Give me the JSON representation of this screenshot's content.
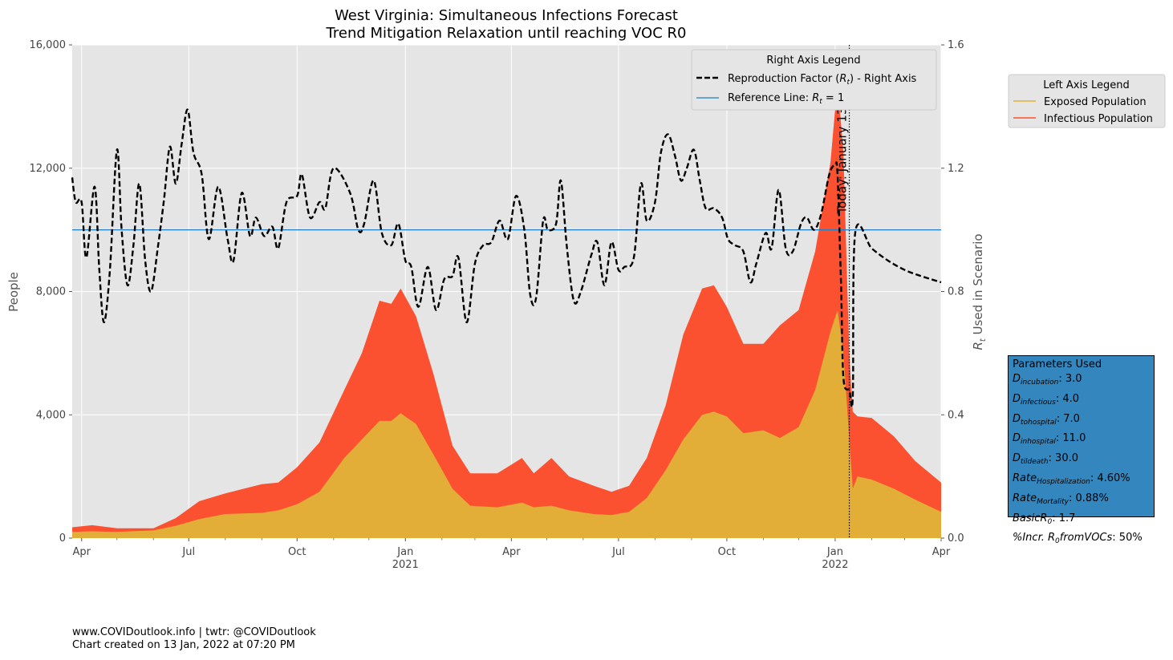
{
  "chart_data": {
    "type": "area",
    "title_line1": "West Virginia: Simultaneous Infections Forecast",
    "title_line2": "Trend Mitigation Relaxation until reaching VOC R0",
    "ylabel_left": "People",
    "ylabel_right": "R_t Used in Scenario",
    "ylim_left": [
      0,
      16000
    ],
    "ylim_right": [
      0,
      1.6
    ],
    "xlim": [
      "2020-03-24",
      "2022-04-01"
    ],
    "left_ticks": [
      "0",
      "4,000",
      "8,000",
      "12,000",
      "16,000"
    ],
    "right_ticks": [
      "0.0",
      "0.4",
      "0.8",
      "1.2",
      "1.6"
    ],
    "x_ticks": [
      {
        "date": "2020-04-01",
        "label": "Apr",
        "year": ""
      },
      {
        "date": "2020-07-01",
        "label": "Jul",
        "year": ""
      },
      {
        "date": "2020-10-01",
        "label": "Oct",
        "year": ""
      },
      {
        "date": "2021-01-01",
        "label": "Jan",
        "year": "2021"
      },
      {
        "date": "2021-04-01",
        "label": "Apr",
        "year": ""
      },
      {
        "date": "2021-07-01",
        "label": "Jul",
        "year": ""
      },
      {
        "date": "2021-10-01",
        "label": "Oct",
        "year": ""
      },
      {
        "date": "2022-01-01",
        "label": "Jan",
        "year": "2022"
      },
      {
        "date": "2022-04-01",
        "label": "Apr",
        "year": ""
      }
    ],
    "today": {
      "date": "2022-01-13",
      "label": "Today: January 13"
    },
    "reference_line": 1.0,
    "legend_right": {
      "title": "Right Axis Legend",
      "rt_label": "Reproduction Factor (R_t) - Right Axis",
      "ref_label": "Reference Line: R_t = 1"
    },
    "legend_left": {
      "title": "Left Axis Legend",
      "exposed_label": "Exposed Population",
      "infectious_label": "Infectious Population"
    },
    "colors": {
      "exposed": "#e3ae38",
      "infectious": "#fc5130",
      "rt": "#000000",
      "reference": "#1f7ec4",
      "plot_bg": "#e5e5e5",
      "params_bg": "#3387be"
    },
    "series": [
      {
        "name": "Exposed Population",
        "points": [
          [
            "2020-03-24",
            200
          ],
          [
            "2020-04-10",
            220
          ],
          [
            "2020-05-01",
            200
          ],
          [
            "2020-06-01",
            250
          ],
          [
            "2020-06-20",
            400
          ],
          [
            "2020-07-10",
            620
          ],
          [
            "2020-08-01",
            780
          ],
          [
            "2020-09-01",
            820
          ],
          [
            "2020-09-15",
            900
          ],
          [
            "2020-10-01",
            1100
          ],
          [
            "2020-10-20",
            1500
          ],
          [
            "2020-11-10",
            2600
          ],
          [
            "2020-11-25",
            3200
          ],
          [
            "2020-12-10",
            3800
          ],
          [
            "2020-12-20",
            3800
          ],
          [
            "2020-12-28",
            4050
          ],
          [
            "2021-01-10",
            3700
          ],
          [
            "2021-01-25",
            2700
          ],
          [
            "2021-02-10",
            1600
          ],
          [
            "2021-02-25",
            1050
          ],
          [
            "2021-03-20",
            1000
          ],
          [
            "2021-04-10",
            1150
          ],
          [
            "2021-04-20",
            1000
          ],
          [
            "2021-05-05",
            1050
          ],
          [
            "2021-05-20",
            900
          ],
          [
            "2021-06-10",
            780
          ],
          [
            "2021-06-25",
            750
          ],
          [
            "2021-07-10",
            850
          ],
          [
            "2021-07-25",
            1300
          ],
          [
            "2021-08-10",
            2200
          ],
          [
            "2021-08-25",
            3200
          ],
          [
            "2021-09-10",
            4000
          ],
          [
            "2021-09-20",
            4100
          ],
          [
            "2021-10-01",
            3950
          ],
          [
            "2021-10-15",
            3400
          ],
          [
            "2021-11-01",
            3500
          ],
          [
            "2021-11-15",
            3250
          ],
          [
            "2021-12-01",
            3600
          ],
          [
            "2021-12-15",
            4800
          ],
          [
            "2021-12-28",
            6700
          ],
          [
            "2022-01-03",
            7400
          ],
          [
            "2022-01-08",
            6000
          ],
          [
            "2022-01-13",
            3200
          ],
          [
            "2022-01-16",
            1600
          ],
          [
            "2022-01-20",
            2000
          ],
          [
            "2022-02-01",
            1900
          ],
          [
            "2022-02-20",
            1600
          ],
          [
            "2022-03-10",
            1250
          ],
          [
            "2022-04-01",
            850
          ]
        ]
      },
      {
        "name": "Infectious Population",
        "points": [
          [
            "2020-03-24",
            350
          ],
          [
            "2020-04-10",
            420
          ],
          [
            "2020-05-01",
            320
          ],
          [
            "2020-06-01",
            320
          ],
          [
            "2020-06-20",
            650
          ],
          [
            "2020-07-10",
            1200
          ],
          [
            "2020-08-01",
            1450
          ],
          [
            "2020-09-01",
            1750
          ],
          [
            "2020-09-15",
            1800
          ],
          [
            "2020-10-01",
            2300
          ],
          [
            "2020-10-20",
            3100
          ],
          [
            "2020-11-10",
            4800
          ],
          [
            "2020-11-25",
            6000
          ],
          [
            "2020-12-10",
            7700
          ],
          [
            "2020-12-20",
            7600
          ],
          [
            "2020-12-28",
            8100
          ],
          [
            "2021-01-10",
            7200
          ],
          [
            "2021-01-25",
            5300
          ],
          [
            "2021-02-10",
            3000
          ],
          [
            "2021-02-25",
            2100
          ],
          [
            "2021-03-20",
            2100
          ],
          [
            "2021-04-10",
            2600
          ],
          [
            "2021-04-20",
            2100
          ],
          [
            "2021-05-05",
            2600
          ],
          [
            "2021-05-20",
            2000
          ],
          [
            "2021-06-10",
            1700
          ],
          [
            "2021-06-25",
            1500
          ],
          [
            "2021-07-10",
            1700
          ],
          [
            "2021-07-25",
            2600
          ],
          [
            "2021-08-10",
            4300
          ],
          [
            "2021-08-25",
            6600
          ],
          [
            "2021-09-10",
            8100
          ],
          [
            "2021-09-20",
            8200
          ],
          [
            "2021-10-01",
            7500
          ],
          [
            "2021-10-15",
            6300
          ],
          [
            "2021-11-01",
            6300
          ],
          [
            "2021-11-15",
            6900
          ],
          [
            "2021-12-01",
            7400
          ],
          [
            "2021-12-15",
            9300
          ],
          [
            "2021-12-28",
            12200
          ],
          [
            "2022-01-03",
            14800
          ],
          [
            "2022-01-08",
            12500
          ],
          [
            "2022-01-13",
            6000
          ],
          [
            "2022-01-16",
            4100
          ],
          [
            "2022-01-20",
            3950
          ],
          [
            "2022-02-01",
            3900
          ],
          [
            "2022-02-20",
            3300
          ],
          [
            "2022-03-10",
            2500
          ],
          [
            "2022-04-01",
            1800
          ]
        ]
      },
      {
        "name": "Reproduction Factor (R_t) - Right Axis",
        "axis": "right",
        "points": [
          [
            "2020-03-24",
            1.17
          ],
          [
            "2020-03-27",
            1.09
          ],
          [
            "2020-04-01",
            1.09
          ],
          [
            "2020-04-05",
            0.91
          ],
          [
            "2020-04-12",
            1.14
          ],
          [
            "2020-04-16",
            0.87
          ],
          [
            "2020-04-20",
            0.7
          ],
          [
            "2020-04-25",
            0.87
          ],
          [
            "2020-05-01",
            1.26
          ],
          [
            "2020-05-05",
            1.0
          ],
          [
            "2020-05-10",
            0.82
          ],
          [
            "2020-05-15",
            0.95
          ],
          [
            "2020-05-20",
            1.15
          ],
          [
            "2020-05-25",
            0.9
          ],
          [
            "2020-05-30",
            0.8
          ],
          [
            "2020-06-05",
            0.95
          ],
          [
            "2020-06-10",
            1.1
          ],
          [
            "2020-06-15",
            1.27
          ],
          [
            "2020-06-20",
            1.15
          ],
          [
            "2020-06-25",
            1.28
          ],
          [
            "2020-06-30",
            1.39
          ],
          [
            "2020-07-05",
            1.25
          ],
          [
            "2020-07-12",
            1.18
          ],
          [
            "2020-07-18",
            0.97
          ],
          [
            "2020-07-26",
            1.14
          ],
          [
            "2020-08-03",
            0.97
          ],
          [
            "2020-08-08",
            0.9
          ],
          [
            "2020-08-15",
            1.12
          ],
          [
            "2020-08-22",
            0.98
          ],
          [
            "2020-08-27",
            1.04
          ],
          [
            "2020-09-03",
            0.98
          ],
          [
            "2020-09-10",
            1.01
          ],
          [
            "2020-09-15",
            0.94
          ],
          [
            "2020-09-22",
            1.09
          ],
          [
            "2020-10-01",
            1.11
          ],
          [
            "2020-10-05",
            1.18
          ],
          [
            "2020-10-12",
            1.04
          ],
          [
            "2020-10-20",
            1.09
          ],
          [
            "2020-10-25",
            1.07
          ],
          [
            "2020-11-01",
            1.2
          ],
          [
            "2020-11-15",
            1.12
          ],
          [
            "2020-11-22",
            1.0
          ],
          [
            "2020-11-27",
            1.02
          ],
          [
            "2020-12-05",
            1.16
          ],
          [
            "2020-12-12",
            0.99
          ],
          [
            "2020-12-20",
            0.95
          ],
          [
            "2020-12-26",
            1.02
          ],
          [
            "2021-01-01",
            0.9
          ],
          [
            "2021-01-06",
            0.88
          ],
          [
            "2021-01-12",
            0.75
          ],
          [
            "2021-01-20",
            0.88
          ],
          [
            "2021-01-27",
            0.74
          ],
          [
            "2021-02-03",
            0.84
          ],
          [
            "2021-02-10",
            0.85
          ],
          [
            "2021-02-15",
            0.91
          ],
          [
            "2021-02-22",
            0.7
          ],
          [
            "2021-03-01",
            0.89
          ],
          [
            "2021-03-08",
            0.95
          ],
          [
            "2021-03-15",
            0.96
          ],
          [
            "2021-03-22",
            1.03
          ],
          [
            "2021-03-29",
            0.97
          ],
          [
            "2021-04-05",
            1.11
          ],
          [
            "2021-04-12",
            1.0
          ],
          [
            "2021-04-17",
            0.79
          ],
          [
            "2021-04-22",
            0.78
          ],
          [
            "2021-04-28",
            1.03
          ],
          [
            "2021-05-02",
            1.0
          ],
          [
            "2021-05-09",
            1.02
          ],
          [
            "2021-05-13",
            1.16
          ],
          [
            "2021-05-18",
            0.95
          ],
          [
            "2021-05-24",
            0.77
          ],
          [
            "2021-05-30",
            0.8
          ],
          [
            "2021-06-08",
            0.92
          ],
          [
            "2021-06-13",
            0.96
          ],
          [
            "2021-06-19",
            0.82
          ],
          [
            "2021-06-25",
            0.96
          ],
          [
            "2021-07-01",
            0.87
          ],
          [
            "2021-07-06",
            0.88
          ],
          [
            "2021-07-14",
            0.91
          ],
          [
            "2021-07-20",
            1.15
          ],
          [
            "2021-07-25",
            1.03
          ],
          [
            "2021-08-01",
            1.09
          ],
          [
            "2021-08-06",
            1.25
          ],
          [
            "2021-08-12",
            1.31
          ],
          [
            "2021-08-18",
            1.24
          ],
          [
            "2021-08-23",
            1.16
          ],
          [
            "2021-08-28",
            1.2
          ],
          [
            "2021-09-03",
            1.26
          ],
          [
            "2021-09-08",
            1.16
          ],
          [
            "2021-09-13",
            1.07
          ],
          [
            "2021-09-20",
            1.07
          ],
          [
            "2021-09-27",
            1.04
          ],
          [
            "2021-10-02",
            0.97
          ],
          [
            "2021-10-08",
            0.95
          ],
          [
            "2021-10-15",
            0.93
          ],
          [
            "2021-10-21",
            0.83
          ],
          [
            "2021-10-26",
            0.89
          ],
          [
            "2021-11-03",
            0.99
          ],
          [
            "2021-11-08",
            0.94
          ],
          [
            "2021-11-14",
            1.13
          ],
          [
            "2021-11-20",
            0.94
          ],
          [
            "2021-11-26",
            0.93
          ],
          [
            "2021-12-03",
            1.02
          ],
          [
            "2021-12-08",
            1.04
          ],
          [
            "2021-12-14",
            1.0
          ],
          [
            "2021-12-20",
            1.05
          ],
          [
            "2021-12-27",
            1.18
          ],
          [
            "2022-01-01",
            1.21
          ],
          [
            "2022-01-03",
            1.18
          ],
          [
            "2022-01-06",
            0.82
          ],
          [
            "2022-01-08",
            0.52
          ],
          [
            "2022-01-13",
            0.48
          ],
          [
            "2022-01-16",
            0.46
          ],
          [
            "2022-01-18",
            0.99
          ],
          [
            "2022-02-01",
            0.94
          ],
          [
            "2022-02-15",
            0.9
          ],
          [
            "2022-03-01",
            0.87
          ],
          [
            "2022-03-15",
            0.85
          ],
          [
            "2022-04-01",
            0.83
          ]
        ]
      }
    ]
  },
  "params": {
    "title": "Parameters Used",
    "items": [
      {
        "base": "D",
        "sub": "incubation",
        "value": ": 3.0"
      },
      {
        "base": "D",
        "sub": "infectious",
        "value": ": 4.0"
      },
      {
        "base": "D",
        "sub": "tohospital",
        "value": ": 7.0"
      },
      {
        "base": "D",
        "sub": "inhospital",
        "value": ": 11.0"
      },
      {
        "base": "D",
        "sub": "tildeath",
        "value": ": 30.0"
      },
      {
        "base": "Rate",
        "sub": "Hospitalization",
        "value": ": 4.60%"
      },
      {
        "base": "Rate",
        "sub": "Mortality",
        "value": ": 0.88%"
      },
      {
        "base": "BasicR",
        "sub": "0",
        "value": ": 1.7"
      },
      {
        "base": "%Incr. R",
        "sub": "0",
        "suffix": "fromVOCs",
        "value": ": 50%"
      }
    ]
  },
  "footer": {
    "line1": "www.COVIDoutlook.info | twtr: @COVIDoutlook",
    "line2": "Chart created on 13 Jan, 2022 at 07:20 PM"
  }
}
